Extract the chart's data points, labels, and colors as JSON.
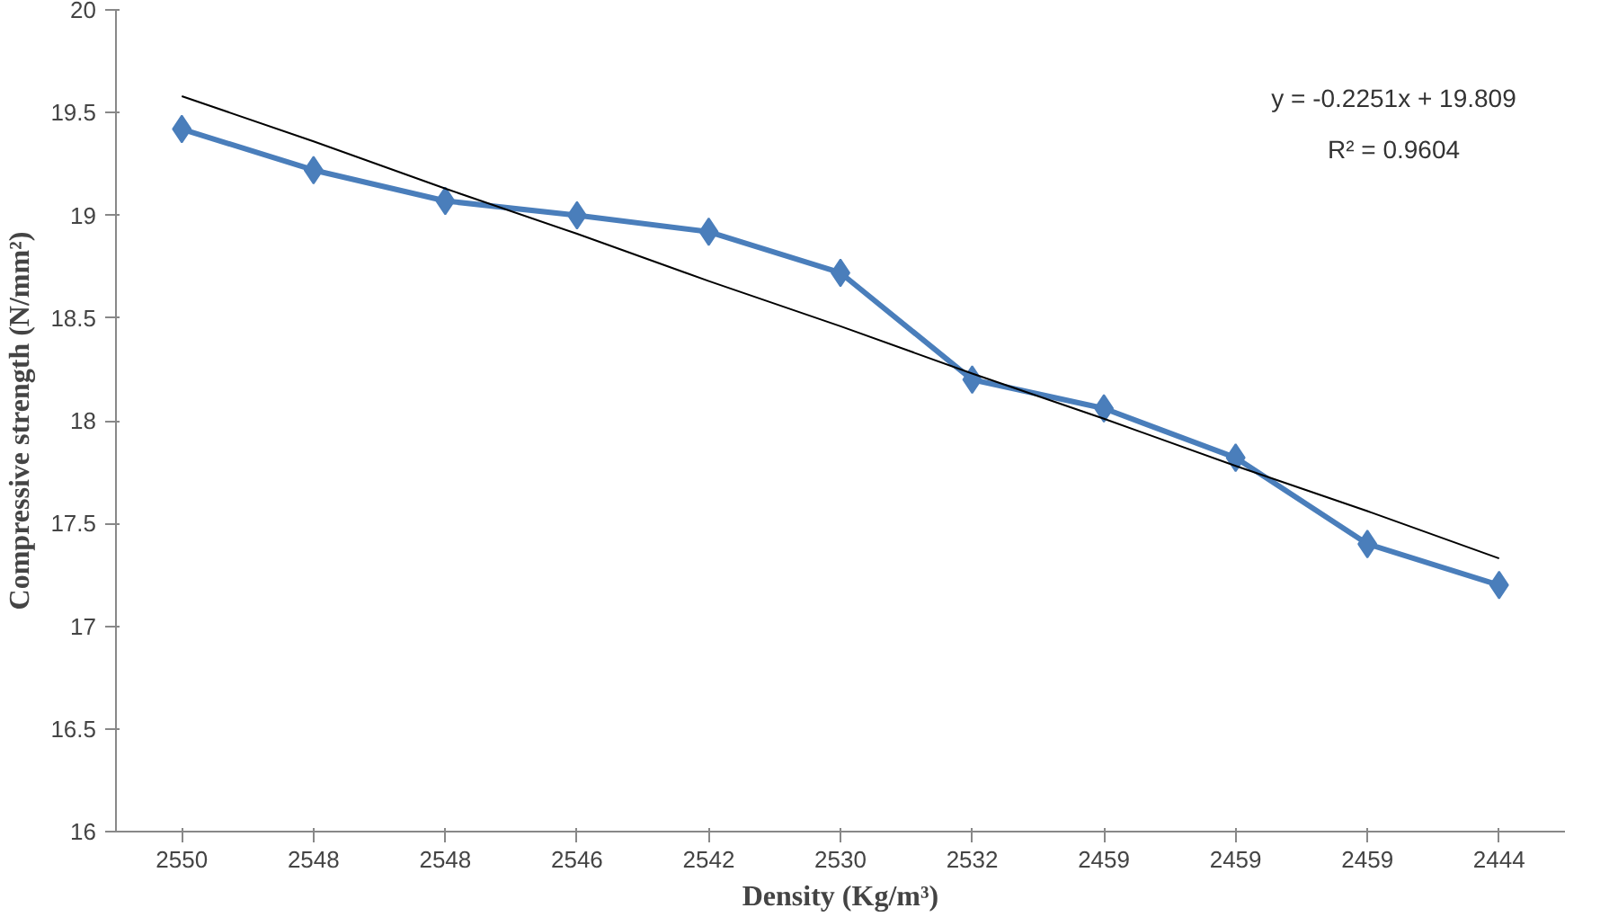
{
  "chart_data": {
    "type": "line",
    "xlabel": "Density (Kg/m³)",
    "ylabel": "Compressive strength (N/mm²)",
    "categories": [
      "2550",
      "2548",
      "2548",
      "2546",
      "2542",
      "2530",
      "2532",
      "2459",
      "2459",
      "2459",
      "2444"
    ],
    "series": [
      {
        "color": "#4a7ebb",
        "values": [
          19.42,
          19.22,
          19.07,
          19.0,
          18.92,
          18.72,
          18.2,
          18.06,
          17.82,
          17.4,
          17.2
        ],
        "marker": "diamond"
      },
      {
        "color": "#000000",
        "values": [
          19.58,
          19.36,
          19.13,
          18.91,
          18.68,
          18.46,
          18.23,
          18.01,
          17.78,
          17.56,
          17.33
        ],
        "marker": "none"
      }
    ],
    "ylim": [
      16,
      20
    ],
    "yticks": [
      16,
      16.5,
      17,
      17.5,
      18,
      18.5,
      19,
      19.5,
      20
    ],
    "annotations": [
      "y = -0.2251x + 19.809",
      "R² = 0.9604"
    ],
    "grid": false
  }
}
